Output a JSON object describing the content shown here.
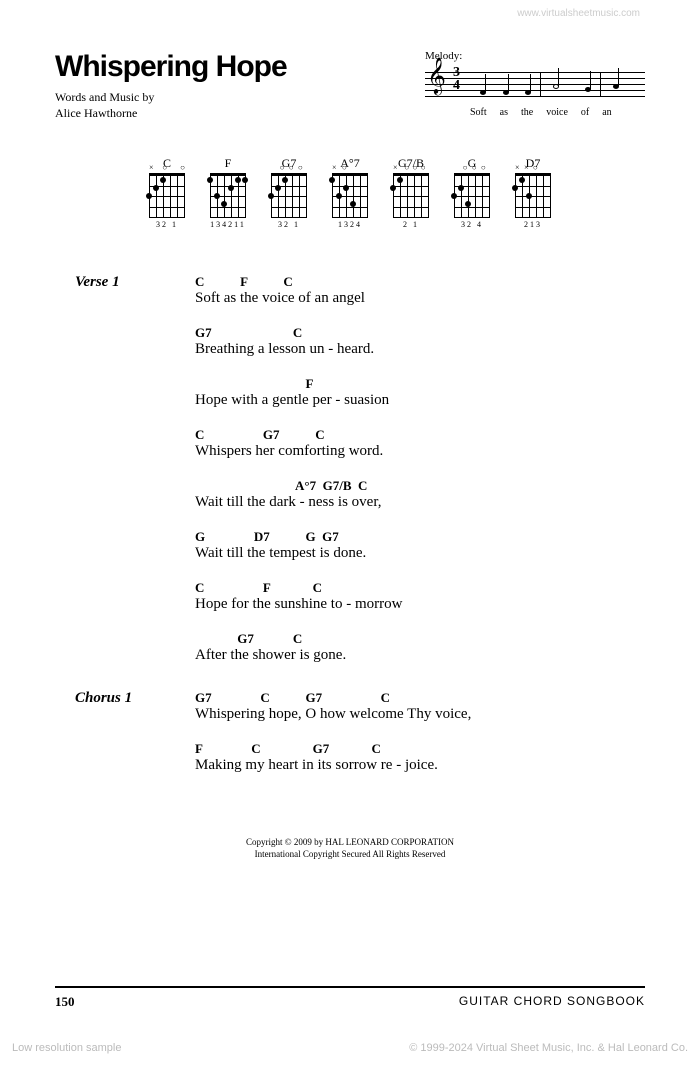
{
  "watermark_top": "www.virtualsheetmusic.com",
  "title": "Whispering Hope",
  "title_fontsize": 30,
  "credits_line1": "Words and Music by",
  "credits_line2": "Alice Hawthorne",
  "melody": {
    "label": "Melody:",
    "time_sig_top": "3",
    "time_sig_bottom": "4",
    "lyrics": [
      "Soft",
      "as",
      "the",
      "voice",
      "of",
      "an"
    ]
  },
  "chords": [
    {
      "name": "C",
      "fingering": "32  1",
      "open": [
        "×",
        "",
        "○",
        "",
        "",
        "○"
      ]
    },
    {
      "name": "F",
      "fingering": "134211",
      "open": [
        "",
        "",
        "",
        "",
        "",
        ""
      ]
    },
    {
      "name": "G7",
      "fingering": "32   1",
      "open": [
        "",
        "",
        "○",
        "○",
        "○",
        ""
      ]
    },
    {
      "name": "A°7",
      "fingering": " 1324",
      "open": [
        "×",
        "○",
        "",
        "",
        "",
        ""
      ]
    },
    {
      "name": "G7/B",
      "fingering": "2   1",
      "open": [
        "×",
        "",
        "○",
        "○",
        "○",
        ""
      ]
    },
    {
      "name": "G",
      "fingering": "32   4",
      "open": [
        "",
        "",
        "○",
        "○",
        "○",
        ""
      ]
    },
    {
      "name": "D7",
      "fingering": " 213",
      "open": [
        "×",
        "×",
        "○",
        "",
        "",
        ""
      ]
    }
  ],
  "sections": [
    {
      "label": "Verse 1",
      "lines": [
        {
          "chords": "C           F           C",
          "text": "Soft as the voice of an angel"
        },
        {
          "chords": "G7                         C",
          "text": "Breathing a lesson un - heard."
        },
        {
          "chords": "                                  F",
          "text": "Hope with a gentle per - suasion"
        },
        {
          "chords": "C                  G7           C",
          "text": "Whispers her comforting word."
        },
        {
          "chords": "                               A°7  G7/B  C",
          "text": "Wait till the dark - ness  is          over,"
        },
        {
          "chords": "G               D7           G  G7",
          "text": "Wait till the tempest is done."
        },
        {
          "chords": "C                  F             C",
          "text": "Hope for the sunshine to - morrow"
        },
        {
          "chords": "             G7            C",
          "text": "After the shower is gone."
        }
      ]
    },
    {
      "label": "Chorus 1",
      "lines": [
        {
          "chords": "G7               C           G7                  C",
          "text": "Whispering hope, O how welcome Thy voice,"
        },
        {
          "chords": "F               C                G7             C",
          "text": "Making my heart in its sorrow re - joice."
        }
      ]
    }
  ],
  "copyright_line1": "Copyright © 2009 by HAL LEONARD CORPORATION",
  "copyright_line2": "International Copyright Secured   All Rights Reserved",
  "page_number": "150",
  "book_title": "GUITAR CHORD SONGBOOK",
  "watermark_bl": "Low resolution sample",
  "watermark_br": "© 1999-2024 Virtual Sheet Music, Inc. & Hal Leonard Co."
}
